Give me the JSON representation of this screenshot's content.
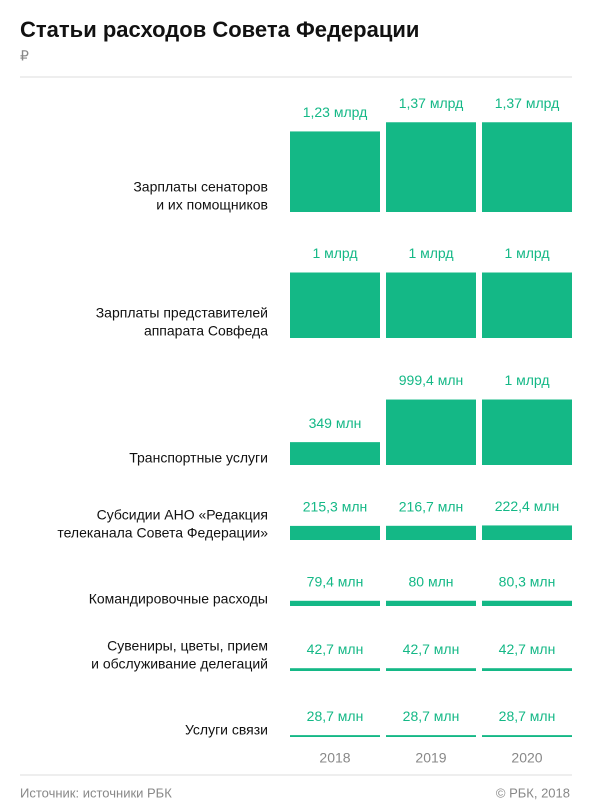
{
  "chart_data": {
    "type": "bar",
    "title": "Статьи расходов Совета Федерации",
    "subtitle": "₽",
    "categories": [
      [
        "Зарплаты сенаторов",
        "и их помощников"
      ],
      [
        "Зарплаты представителей",
        "аппарата Совфеда"
      ],
      [
        "Транспортные услуги"
      ],
      [
        "Субсидии АНО «Редакция",
        "телеканала Совета Федерации»"
      ],
      [
        "Командировочные расходы"
      ],
      [
        "Сувениры, цветы, прием",
        "и обслуживание делегаций"
      ],
      [
        "Услуги связи"
      ]
    ],
    "color": "#14b886",
    "series": [
      {
        "name": "2018",
        "values": [
          1230,
          1000,
          349,
          215.3,
          79.4,
          42.7,
          28.7
        ],
        "value_labels": [
          "1,23 млрд",
          "1 млрд",
          "349 млн",
          "215,3 млн",
          "79,4 млн",
          "42,7 млн",
          "28,7 млн"
        ]
      },
      {
        "name": "2019",
        "values": [
          1370,
          1000,
          999.4,
          216.7,
          80,
          42.7,
          28.7
        ],
        "value_labels": [
          "1,37 млрд",
          "1 млрд",
          "999,4 млн",
          "216,7 млн",
          "80 млн",
          "42,7 млн",
          "28,7 млн"
        ]
      },
      {
        "name": "2020",
        "values": [
          1370,
          1000,
          1000,
          222.4,
          80.3,
          42.7,
          28.7
        ],
        "value_labels": [
          "1,37 млрд",
          "1 млрд",
          "1 млрд",
          "222,4 млн",
          "80,3 млн",
          "42,7 млн",
          "28,7 млн"
        ]
      }
    ],
    "source": "Источник: источники РБК",
    "credit": "© РБК, 2018"
  }
}
